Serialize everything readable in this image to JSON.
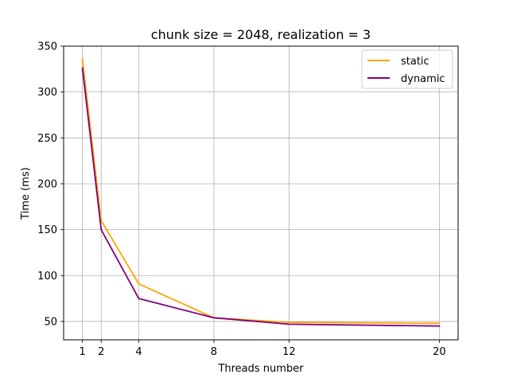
{
  "chart_data": {
    "type": "line",
    "title": "chunk size = 2048, realization = 3",
    "xlabel": "Threads number",
    "ylabel": "Time (ms)",
    "x": [
      1,
      2,
      4,
      8,
      12,
      20
    ],
    "x_ticks": [
      "1",
      "2",
      "4",
      "8",
      "12",
      "20"
    ],
    "xlim": [
      0,
      21
    ],
    "ylim": [
      30,
      350
    ],
    "y_ticks": [
      50,
      100,
      150,
      200,
      250,
      300,
      350
    ],
    "grid": true,
    "legend_position": "top-right",
    "series": [
      {
        "name": "static",
        "color": "#FFA500",
        "values": [
          336,
          160,
          91,
          54,
          49,
          48
        ]
      },
      {
        "name": "dynamic",
        "color": "#800080",
        "values": [
          326,
          150,
          75,
          54,
          47,
          45
        ]
      }
    ]
  }
}
